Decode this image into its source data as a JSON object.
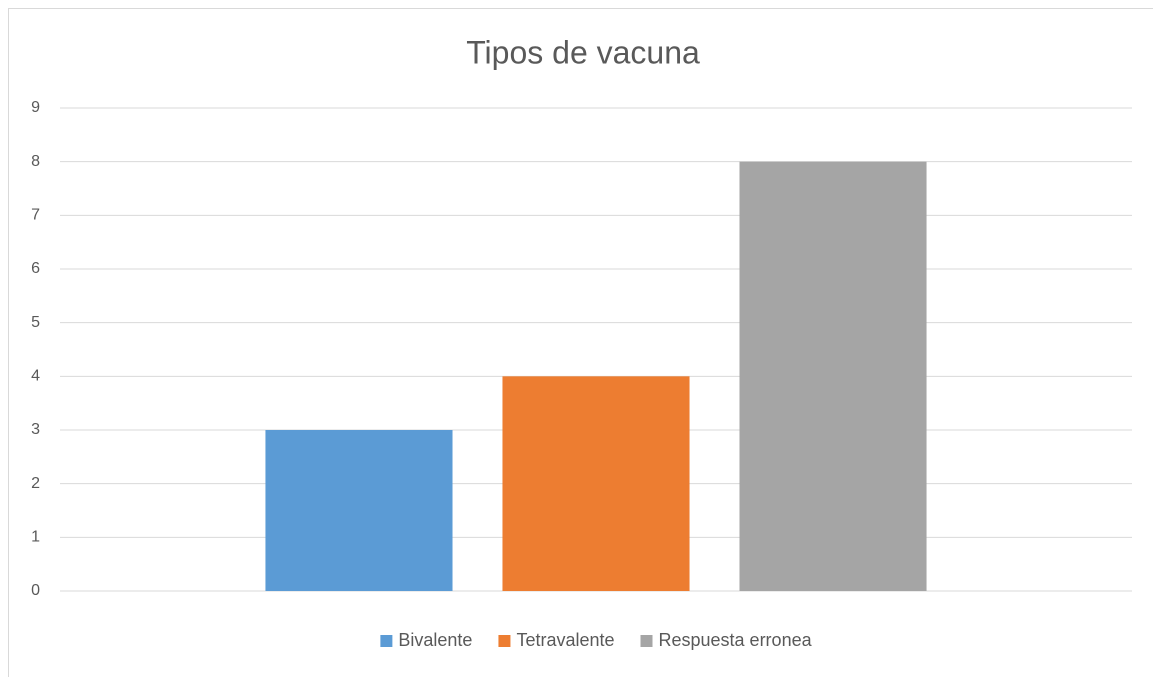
{
  "chart_data": {
    "type": "bar",
    "title": "Tipos de vacuna",
    "categories": [
      null
    ],
    "series": [
      {
        "name": "Bivalente",
        "color": "#5b9bd5",
        "values": [
          3
        ]
      },
      {
        "name": "Tetravalente",
        "color": "#ed7d31",
        "values": [
          4
        ]
      },
      {
        "name": "Respuesta erronea",
        "color": "#a5a5a5",
        "values": [
          8
        ]
      }
    ],
    "ylim": [
      0,
      9
    ],
    "yticks": [
      0,
      1,
      2,
      3,
      4,
      5,
      6,
      7,
      8,
      9
    ],
    "grid": true,
    "legend": "bottom"
  }
}
